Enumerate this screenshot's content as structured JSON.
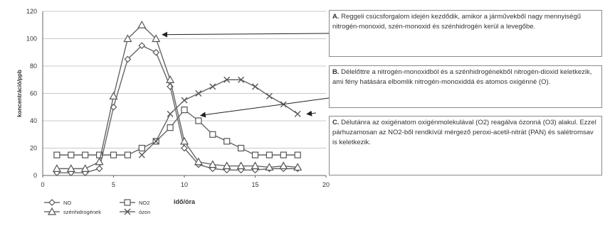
{
  "chart_data": {
    "type": "line",
    "xlabel": "idő/óra",
    "ylabel": "koncentráció/ppb",
    "xlim": [
      0,
      20
    ],
    "ylim": [
      0,
      120
    ],
    "xticks": [
      0,
      5,
      10,
      15,
      20
    ],
    "yticks": [
      0,
      20,
      40,
      60,
      80,
      100,
      120
    ],
    "grid": "horizontal",
    "legend_position": "bottom-left",
    "series": [
      {
        "name": "NO",
        "marker": "diamond",
        "color": "#666666",
        "x": [
          1,
          2,
          3,
          4,
          5,
          6,
          7,
          8,
          9,
          10,
          11,
          12,
          13,
          14,
          15,
          16,
          17,
          18
        ],
        "y": [
          2,
          2,
          2,
          5,
          50,
          85,
          95,
          90,
          65,
          20,
          8,
          5,
          4,
          4,
          4,
          5,
          5,
          5
        ]
      },
      {
        "name": "NO2",
        "marker": "square",
        "color": "#666666",
        "x": [
          1,
          2,
          3,
          4,
          5,
          6,
          7,
          8,
          9,
          10,
          11,
          12,
          13,
          14,
          15,
          16,
          17,
          18
        ],
        "y": [
          15,
          15,
          15,
          15,
          15,
          15,
          20,
          25,
          35,
          48,
          40,
          30,
          25,
          20,
          15,
          15,
          15,
          15
        ]
      },
      {
        "name": "szénhidrogének",
        "marker": "triangle",
        "color": "#666666",
        "x": [
          1,
          2,
          3,
          4,
          5,
          6,
          7,
          8,
          9,
          10,
          11,
          12,
          13,
          14,
          15,
          16,
          17,
          18
        ],
        "y": [
          5,
          5,
          5,
          10,
          58,
          100,
          110,
          100,
          70,
          25,
          10,
          8,
          7,
          7,
          7,
          6,
          7,
          6
        ]
      },
      {
        "name": "ózon",
        "marker": "x",
        "color": "#666666",
        "x": [
          7,
          8,
          9,
          10,
          11,
          12,
          13,
          14,
          15,
          16,
          17,
          18
        ],
        "y": [
          15,
          25,
          45,
          55,
          60,
          65,
          70,
          70,
          65,
          58,
          52,
          45
        ]
      }
    ],
    "annotations": [
      {
        "id": "A",
        "key": "A.",
        "text": "Reggeli csúcsforgalom idején kezdődik, amikor a járművekből nagy mennyiségű nitrogén-monoxid, szén-monoxid és szénhidrogén kerül a levegőbe.",
        "arrow_to": {
          "x": 8.5,
          "y": 103
        }
      },
      {
        "id": "B",
        "key": "B.",
        "text": "Délelőttre a nitrogén-monoxidból és a szénhidrogénekből nitrogén-dioxid keletkezik, ami fény hatására elbomlik nitrogén-monoxiddá és atomos oxigénné (O).",
        "arrow_to": {
          "x": 11.2,
          "y": 44
        }
      },
      {
        "id": "C",
        "key": "C.",
        "text": "Délutánra az oxigénatom oxigénmolekulával (O2) reagálva ózonná (O3) alakul. Ezzel párhuzamosan az NO2-ből rendkívül mérgező peroxi-acetil-nitrát (PAN) és salétromsav is keletkezik.",
        "arrow_to": {
          "x": 18.7,
          "y": 45
        }
      }
    ]
  }
}
